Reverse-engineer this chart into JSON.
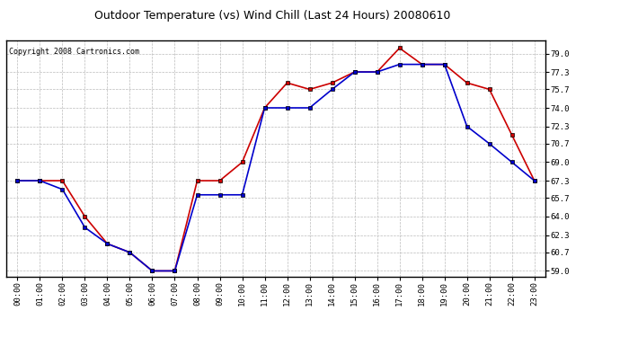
{
  "title": "Outdoor Temperature (vs) Wind Chill (Last 24 Hours) 20080610",
  "subtitle": "Copyright 2008 Cartronics.com",
  "hours": [
    "00:00",
    "01:00",
    "02:00",
    "03:00",
    "04:00",
    "05:00",
    "06:00",
    "07:00",
    "08:00",
    "09:00",
    "10:00",
    "11:00",
    "12:00",
    "13:00",
    "14:00",
    "15:00",
    "16:00",
    "17:00",
    "18:00",
    "19:00",
    "20:00",
    "21:00",
    "22:00",
    "23:00"
  ],
  "temp": [
    67.3,
    67.3,
    67.3,
    64.0,
    61.5,
    60.7,
    59.0,
    59.0,
    67.3,
    67.3,
    69.0,
    74.0,
    76.3,
    75.7,
    76.3,
    77.3,
    77.3,
    79.5,
    78.0,
    78.0,
    76.3,
    75.7,
    71.5,
    67.3
  ],
  "wind_chill": [
    67.3,
    67.3,
    66.5,
    63.0,
    61.5,
    60.7,
    59.0,
    59.0,
    66.0,
    66.0,
    66.0,
    74.0,
    74.0,
    74.0,
    75.7,
    77.3,
    77.3,
    78.0,
    78.0,
    78.0,
    72.3,
    70.7,
    69.0,
    67.3
  ],
  "temp_color": "#cc0000",
  "wind_chill_color": "#0000cc",
  "bg_color": "#ffffff",
  "plot_bg_color": "#ffffff",
  "grid_color": "#bbbbbb",
  "yticks": [
    59.0,
    60.7,
    62.3,
    64.0,
    65.7,
    67.3,
    69.0,
    70.7,
    72.3,
    74.0,
    75.7,
    77.3,
    79.0
  ],
  "ylim": [
    58.5,
    80.2
  ],
  "marker": "s",
  "marker_size": 3,
  "line_width": 1.2
}
